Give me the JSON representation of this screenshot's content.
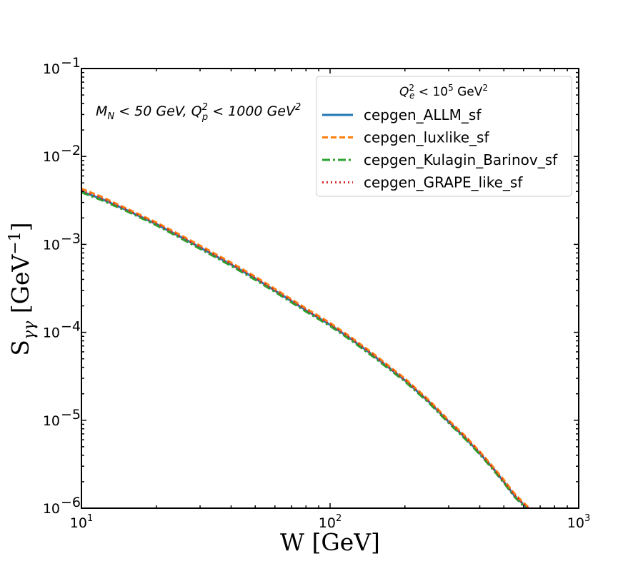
{
  "chart_data": {
    "type": "line",
    "title": "",
    "xlabel": "W [GeV]",
    "ylabel": "Sγγ [GeV⁻¹]",
    "xscale": "log",
    "yscale": "log",
    "xlim": [
      10,
      1000
    ],
    "ylim": [
      1e-06,
      0.1
    ],
    "x_ticks": [
      {
        "value": 10,
        "base": "10",
        "exp": "1"
      },
      {
        "value": 100,
        "base": "10",
        "exp": "2"
      },
      {
        "value": 1000,
        "base": "10",
        "exp": "3"
      }
    ],
    "y_ticks": [
      {
        "value": 1e-06,
        "base": "10",
        "exp": "−6"
      },
      {
        "value": 1e-05,
        "base": "10",
        "exp": "−5"
      },
      {
        "value": 0.0001,
        "base": "10",
        "exp": "−4"
      },
      {
        "value": 0.001,
        "base": "10",
        "exp": "−3"
      },
      {
        "value": 0.01,
        "base": "10",
        "exp": "−2"
      },
      {
        "value": 0.1,
        "base": "10",
        "exp": "−1"
      }
    ],
    "grid": false,
    "annotation": "M_N < 50 GeV, Q_p^2 < 1000 GeV^2",
    "legend": {
      "placement": "top-right",
      "title": "Q_e^2 <  10^5 GeV^2",
      "entries": [
        "cepgen_ALLM_sf",
        "cepgen_luxlike_sf",
        "cepgen_Kulagin_Barinov_sf",
        "cepgen_GRAPE_like_sf"
      ]
    },
    "series": [
      {
        "name": "cepgen_ALLM_sf",
        "color": "#1f77b4",
        "style": "solid",
        "x": [
          10,
          12,
          15,
          20,
          25,
          30,
          40,
          50,
          60,
          80,
          100,
          120,
          150,
          200,
          250,
          300,
          350,
          400,
          450,
          500,
          550,
          600,
          640
        ],
        "y": [
          0.004,
          0.0033,
          0.0025,
          0.0017,
          0.00122,
          0.00092,
          0.00059,
          0.00041,
          0.000298,
          0.000178,
          0.000122,
          8.6e-05,
          5.4e-05,
          2.85e-05,
          1.62e-05,
          9.6e-06,
          6.3e-06,
          4.2e-06,
          2.9e-06,
          2e-06,
          1.4e-06,
          1.1e-06,
          9.5e-07
        ]
      },
      {
        "name": "cepgen_luxlike_sf",
        "color": "#ff7f0e",
        "style": "dashed",
        "x": [
          10,
          12,
          15,
          20,
          25,
          30,
          40,
          50,
          60,
          80,
          100,
          120,
          150,
          200,
          250,
          300,
          350,
          400,
          450,
          500,
          550,
          600,
          640
        ],
        "y": [
          0.0043,
          0.0035,
          0.0026,
          0.00178,
          0.00128,
          0.00097,
          0.00062,
          0.00043,
          0.000312,
          0.000187,
          0.000128,
          9e-05,
          5.65e-05,
          2.98e-05,
          1.69e-05,
          1e-05,
          6.6e-06,
          4.4e-06,
          3e-06,
          2.1e-06,
          1.48e-06,
          1.15e-06,
          9.8e-07
        ]
      },
      {
        "name": "cepgen_Kulagin_Barinov_sf",
        "color": "#2ca02c",
        "style": "dashdot",
        "x": [
          10,
          12,
          15,
          20,
          25,
          30,
          40,
          50,
          60,
          80,
          100,
          120,
          150,
          200,
          250,
          300,
          350,
          400,
          450,
          500,
          550,
          600,
          640
        ],
        "y": [
          0.0039,
          0.0032,
          0.00243,
          0.00165,
          0.00118,
          0.00089,
          0.00057,
          0.000395,
          0.000288,
          0.000172,
          0.000118,
          8.3e-05,
          5.2e-05,
          2.76e-05,
          1.57e-05,
          9.3e-06,
          6.1e-06,
          4.1e-06,
          2.8e-06,
          1.94e-06,
          1.36e-06,
          1.06e-06,
          9.2e-07
        ]
      },
      {
        "name": "cepgen_GRAPE_like_sf",
        "color": "#d62728",
        "style": "dotted",
        "x": [
          10,
          12,
          15,
          20,
          25,
          30,
          40,
          50,
          60,
          80,
          100,
          120,
          150,
          200,
          250,
          300,
          350,
          400,
          450,
          500,
          550,
          600,
          640
        ],
        "y": [
          0.0041,
          0.00335,
          0.00252,
          0.00172,
          0.00123,
          0.00093,
          0.000595,
          0.000413,
          0.0003,
          0.00018,
          0.000123,
          8.7e-05,
          5.45e-05,
          2.88e-05,
          1.64e-05,
          9.7e-06,
          6.4e-06,
          4.3e-06,
          2.9e-06,
          2e-06,
          1.42e-06,
          1.11e-06,
          9.6e-07
        ]
      }
    ]
  }
}
